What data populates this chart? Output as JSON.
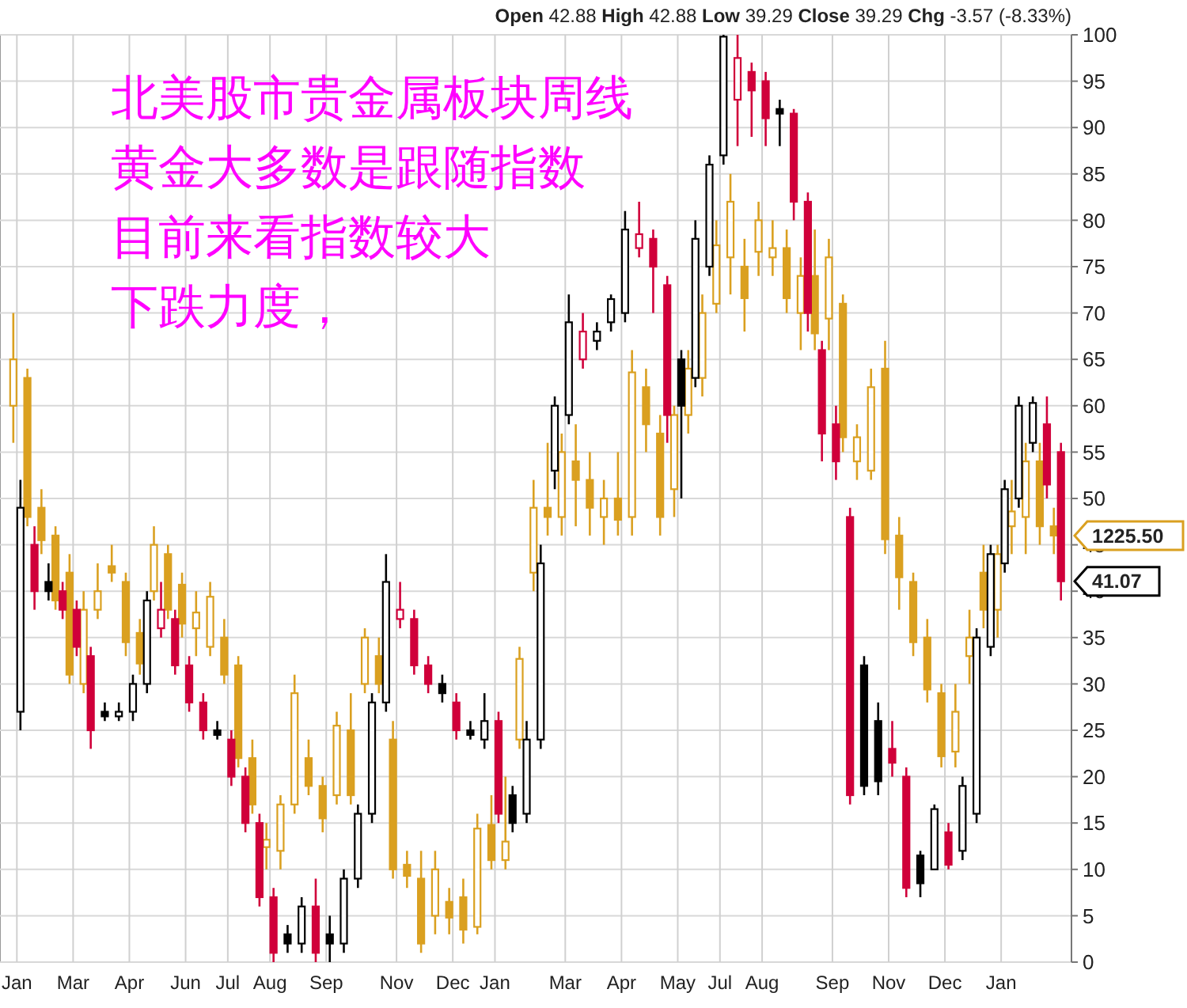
{
  "chart_data": {
    "type": "candlestick",
    "title": "北美股市贵金属板块周线",
    "subtitle": "Open 42.88 High 42.88 Low 39.29 Close 39.29 Chg -3.57 (-8.33%)",
    "categories": [
      "Jan",
      null,
      null,
      null,
      "Mar",
      null,
      null,
      null,
      "Apr",
      null,
      null,
      null,
      "Jun",
      null,
      null,
      "Jul",
      null,
      null,
      "Aug",
      null,
      null,
      null,
      "Sep",
      null,
      null,
      null,
      null,
      "Nov",
      null,
      null,
      null,
      "Dec",
      null,
      null,
      "Jan",
      null,
      null,
      null,
      null,
      "Mar",
      null,
      null,
      null,
      "Apr",
      null,
      null,
      null,
      "May",
      null,
      null,
      "Jul",
      null,
      null,
      "Aug",
      null,
      null,
      null,
      null,
      "Sep",
      null,
      null,
      null,
      "Nov",
      null,
      null,
      null,
      "Dec",
      null,
      null,
      null,
      "Jan",
      null,
      null,
      null,
      null
    ],
    "series": [
      {
        "color": "#daa020",
        "ohlc": [
          [
            60,
            70,
            56,
            65
          ],
          [
            63,
            64,
            47,
            48
          ],
          [
            49,
            51,
            44,
            45.5
          ],
          [
            46,
            47,
            38,
            39
          ],
          [
            42,
            44,
            30,
            31
          ],
          [
            30,
            40,
            29,
            38
          ],
          [
            38,
            43,
            37,
            40
          ],
          [
            42.7,
            45,
            41,
            42
          ],
          [
            41,
            42,
            33,
            34.5
          ],
          [
            35.5,
            37,
            31,
            32.2
          ],
          [
            40,
            47,
            39,
            45
          ],
          [
            44,
            45,
            37,
            38
          ],
          [
            40.7,
            42,
            35,
            36.5
          ],
          [
            36,
            40,
            33,
            37.7
          ],
          [
            34,
            41,
            33,
            39.4
          ],
          [
            35,
            37,
            30,
            31
          ],
          [
            32,
            33,
            21,
            22
          ],
          [
            22,
            24,
            16,
            17
          ],
          [
            12.4,
            15,
            10,
            13.2
          ],
          [
            12,
            18,
            10,
            17
          ],
          [
            17,
            31,
            16,
            29
          ],
          [
            22,
            24,
            18,
            19
          ],
          [
            19,
            20,
            14,
            15.5
          ],
          [
            18,
            27,
            17,
            25.5
          ],
          [
            25,
            29,
            17,
            18
          ],
          [
            30,
            36,
            29,
            35
          ],
          [
            33,
            35,
            29,
            30
          ],
          [
            24,
            26,
            9,
            10
          ],
          [
            10.5,
            12,
            8,
            9.3
          ],
          [
            9,
            12,
            1,
            2
          ],
          [
            5,
            12,
            3,
            10
          ],
          [
            6.5,
            8,
            3,
            4.8
          ],
          [
            7,
            9,
            2,
            3.5
          ],
          [
            3.8,
            16,
            3,
            14.4
          ],
          [
            14.8,
            18,
            10,
            11
          ],
          [
            11,
            20,
            10,
            13
          ],
          [
            24,
            34,
            23,
            32.7
          ],
          [
            42,
            52,
            40,
            49
          ],
          [
            49,
            56,
            46,
            48
          ],
          [
            48,
            57,
            46,
            55
          ],
          [
            54,
            58,
            47,
            52
          ],
          [
            52,
            55,
            46,
            49
          ],
          [
            48,
            52,
            45,
            50
          ],
          [
            50,
            55,
            46,
            47.7
          ],
          [
            48,
            66,
            46,
            63.6
          ],
          [
            62,
            64,
            55,
            58
          ],
          [
            57,
            59,
            46,
            48
          ],
          [
            51,
            60,
            48,
            59
          ],
          [
            59,
            66,
            57,
            64
          ],
          [
            63,
            72,
            61,
            70
          ],
          [
            71,
            80,
            70,
            77.3
          ],
          [
            76,
            85,
            72,
            82
          ],
          [
            75,
            78,
            68,
            71.6
          ],
          [
            76.6,
            82,
            74,
            80
          ],
          [
            76,
            80,
            74,
            77
          ],
          [
            77,
            79,
            70,
            71.6
          ],
          [
            70,
            76,
            66,
            74
          ],
          [
            74,
            79,
            66,
            67.8
          ],
          [
            69.4,
            78,
            66,
            76
          ],
          [
            71,
            72,
            55,
            56.6
          ],
          [
            54,
            58,
            52,
            56.6
          ],
          [
            53,
            64,
            52,
            62
          ],
          [
            64,
            67,
            44,
            45.6
          ],
          [
            46,
            48,
            38,
            41.5
          ],
          [
            41,
            42,
            33,
            34.5
          ],
          [
            35,
            37,
            28,
            29.4
          ],
          [
            29,
            30,
            21,
            22.2
          ],
          [
            22.7,
            30,
            21,
            27
          ],
          [
            33,
            38,
            30,
            35
          ],
          [
            42,
            45,
            36,
            38
          ],
          [
            38,
            45,
            35,
            44
          ],
          [
            47,
            52,
            44,
            48.6
          ],
          [
            48,
            56,
            44,
            54
          ],
          [
            54,
            56,
            45,
            47
          ],
          [
            47,
            49,
            44,
            46
          ]
        ]
      },
      {
        "color": "#000000",
        "colors": [
          "#000000",
          "#d0003a",
          "#000000",
          "#d0003a",
          "#d0003a",
          "#d0003a",
          "#000000",
          "#000000",
          "#000000",
          "#000000",
          "#d0003a",
          "#d0003a",
          "#d0003a",
          "#d0003a",
          "#000000",
          "#d0003a",
          "#d0003a",
          "#d0003a",
          "#d0003a",
          "#000000",
          "#000000",
          "#d0003a",
          "#000000",
          "#000000",
          "#000000",
          "#000000",
          "#000000",
          "#d0003a",
          "#d0003a",
          "#d0003a",
          "#000000",
          "#d0003a",
          "#000000",
          "#000000",
          "#d0003a",
          "#000000",
          "#000000",
          "#000000",
          "#000000",
          "#000000",
          "#d0003a",
          "#000000",
          "#000000",
          "#000000",
          "#d0003a",
          "#d0003a",
          "#d0003a",
          "#000000",
          "#000000",
          "#000000",
          "#000000",
          "#d0003a",
          "#d0003a",
          "#d0003a",
          "#000000",
          "#d0003a",
          "#d0003a",
          "#d0003a",
          "#d0003a",
          "#d0003a",
          "#000000",
          "#000000",
          "#d0003a",
          "#d0003a",
          "#000000",
          "#000000",
          "#d0003a",
          "#000000",
          "#000000",
          "#000000",
          "#000000",
          "#000000",
          "#000000",
          "#d0003a",
          "#d0003a"
        ],
        "ohlc": [
          [
            27,
            52,
            25,
            49
          ],
          [
            45,
            47,
            38,
            40
          ],
          [
            41,
            43,
            39,
            40
          ],
          [
            40,
            41,
            37,
            38
          ],
          [
            38,
            39,
            33,
            34
          ],
          [
            33,
            34,
            23,
            25
          ],
          [
            27,
            28,
            26,
            26.5
          ],
          [
            26.5,
            28,
            26,
            27
          ],
          [
            27,
            31,
            26,
            30
          ],
          [
            30,
            40,
            29,
            39
          ],
          [
            36,
            41,
            35,
            38
          ],
          [
            37,
            38,
            31,
            32
          ],
          [
            32,
            33,
            27,
            28
          ],
          [
            28,
            29,
            24,
            25
          ],
          [
            25,
            26,
            24,
            24.5
          ],
          [
            24,
            25,
            19,
            20
          ],
          [
            20,
            21,
            14,
            15
          ],
          [
            15,
            16,
            6,
            7
          ],
          [
            7,
            8,
            0,
            1
          ],
          [
            3,
            4,
            1,
            2
          ],
          [
            2,
            7,
            1,
            6
          ],
          [
            6,
            9,
            0,
            1
          ],
          [
            3,
            5,
            0,
            2
          ],
          [
            2,
            10,
            1,
            9
          ],
          [
            9,
            17,
            8,
            16
          ],
          [
            16,
            29,
            15,
            28
          ],
          [
            28,
            44,
            27,
            41
          ],
          [
            37,
            41,
            36,
            38
          ],
          [
            37,
            38,
            31,
            32
          ],
          [
            32,
            33,
            29,
            30
          ],
          [
            30,
            31,
            28,
            29
          ],
          [
            28,
            29,
            24,
            25
          ],
          [
            25,
            26,
            24,
            24.5
          ],
          [
            24,
            29,
            23,
            26
          ],
          [
            26,
            27,
            15,
            16
          ],
          [
            18,
            19,
            14,
            15
          ],
          [
            16,
            26,
            15,
            24
          ],
          [
            24,
            45,
            23,
            43
          ],
          [
            53,
            61,
            51,
            60
          ],
          [
            59,
            72,
            58,
            69
          ],
          [
            65,
            70,
            64,
            68
          ],
          [
            67,
            69,
            66,
            68
          ],
          [
            69,
            72,
            68,
            71.5
          ],
          [
            70,
            81,
            69,
            79
          ],
          [
            77,
            82,
            76,
            78.5
          ],
          [
            78,
            79,
            70,
            75
          ],
          [
            73,
            74,
            56,
            59
          ],
          [
            65,
            66,
            50,
            60
          ],
          [
            63,
            80,
            62,
            78
          ],
          [
            75,
            87,
            74,
            86
          ],
          [
            87,
            100,
            86,
            99.8
          ],
          [
            93,
            100,
            88,
            97.5
          ],
          [
            96,
            97,
            89,
            94
          ],
          [
            95,
            96,
            88,
            91
          ],
          [
            92,
            93,
            88,
            91.5
          ],
          [
            91.5,
            92,
            80,
            82
          ],
          [
            82,
            83,
            68,
            70
          ],
          [
            66,
            67,
            54,
            57
          ],
          [
            58,
            60,
            52,
            54
          ],
          [
            48,
            49,
            17,
            18
          ],
          [
            32,
            33,
            18,
            19
          ],
          [
            26,
            28,
            18,
            19.5
          ],
          [
            23,
            26,
            20,
            21.5
          ],
          [
            20,
            21,
            7,
            8
          ],
          [
            11.5,
            12,
            7,
            8.5
          ],
          [
            10,
            17,
            10,
            16.5
          ],
          [
            14,
            15,
            10,
            10.5
          ],
          [
            12,
            20,
            11,
            19
          ],
          [
            16,
            36,
            15,
            35
          ],
          [
            34,
            45,
            33,
            44
          ],
          [
            43,
            52,
            42,
            51
          ],
          [
            50,
            61,
            49,
            60
          ],
          [
            56,
            61,
            55,
            60.3
          ],
          [
            58,
            61,
            50,
            51.5
          ],
          [
            55,
            56,
            39,
            41.07
          ]
        ]
      }
    ],
    "ylim": [
      0,
      100
    ],
    "yticks": [
      0,
      5,
      10,
      15,
      20,
      25,
      30,
      35,
      40,
      45,
      50,
      55,
      60,
      65,
      70,
      75,
      80,
      85,
      90,
      95,
      100
    ],
    "grid": true,
    "annotations": [
      "黄金大多数是跟随指数",
      "目前来看指数较大",
      "下跌力度，",
      "1225.50",
      "41.07"
    ]
  }
}
